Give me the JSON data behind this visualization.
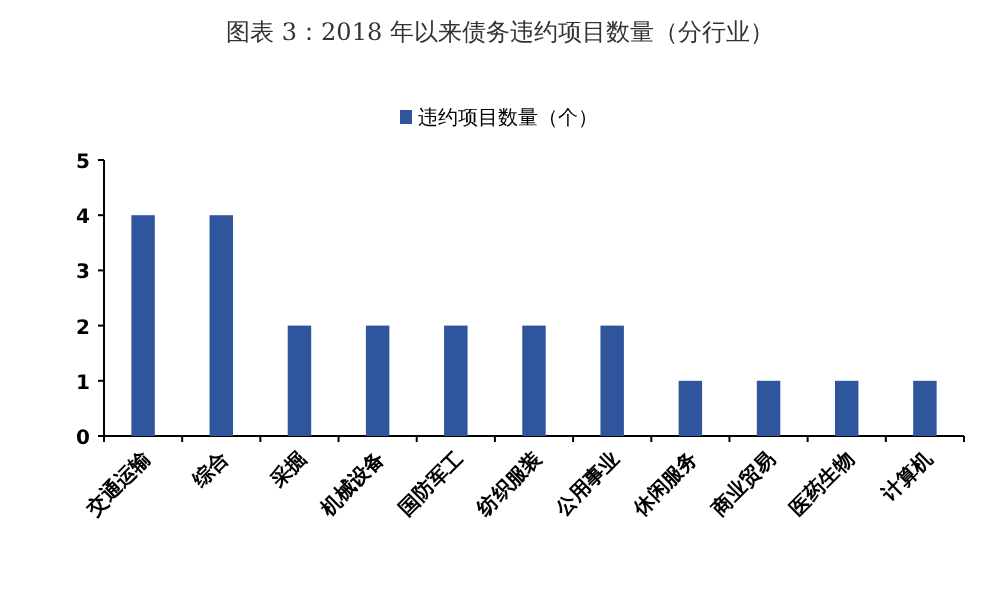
{
  "chart_data": {
    "type": "bar",
    "title": "图表 3：2018 年以来债务违约项目数量（分行业）",
    "categories": [
      "交通运输",
      "综合",
      "采掘",
      "机械设备",
      "国防军工",
      "纺织服装",
      "公用事业",
      "休闲服务",
      "商业贸易",
      "医药生物",
      "计算机"
    ],
    "series": [
      {
        "name": "违约项目数量（个）",
        "color": "#2f559c",
        "values": [
          4,
          4,
          2,
          2,
          2,
          2,
          2,
          1,
          1,
          1,
          1
        ]
      }
    ],
    "ylim": [
      0,
      5
    ],
    "yticks": [
      0,
      1,
      2,
      3,
      4,
      5
    ],
    "legend": "top"
  }
}
